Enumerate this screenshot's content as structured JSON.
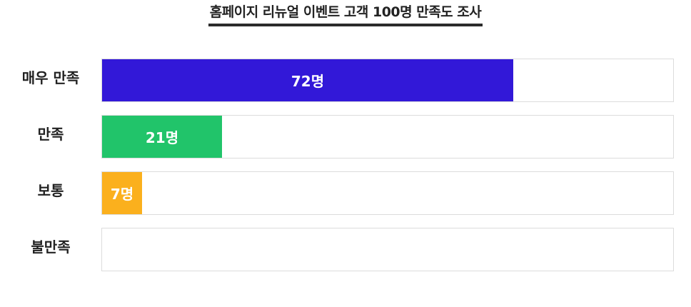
{
  "chart_data": {
    "type": "bar",
    "orientation": "horizontal",
    "title": "홈페이지 리뉴얼 이벤트 고객 100명 만족도 조사",
    "categories": [
      "매우 만족",
      "만족",
      "보통",
      "불만족"
    ],
    "values": [
      72,
      21,
      7,
      0
    ],
    "value_labels": [
      "72명",
      "21명",
      "7명",
      ""
    ],
    "colors": [
      "#3218d8",
      "#21c46a",
      "#fbb01d",
      "#cccccc"
    ],
    "xlim": [
      0,
      100
    ],
    "grid": false,
    "legend": "none"
  }
}
